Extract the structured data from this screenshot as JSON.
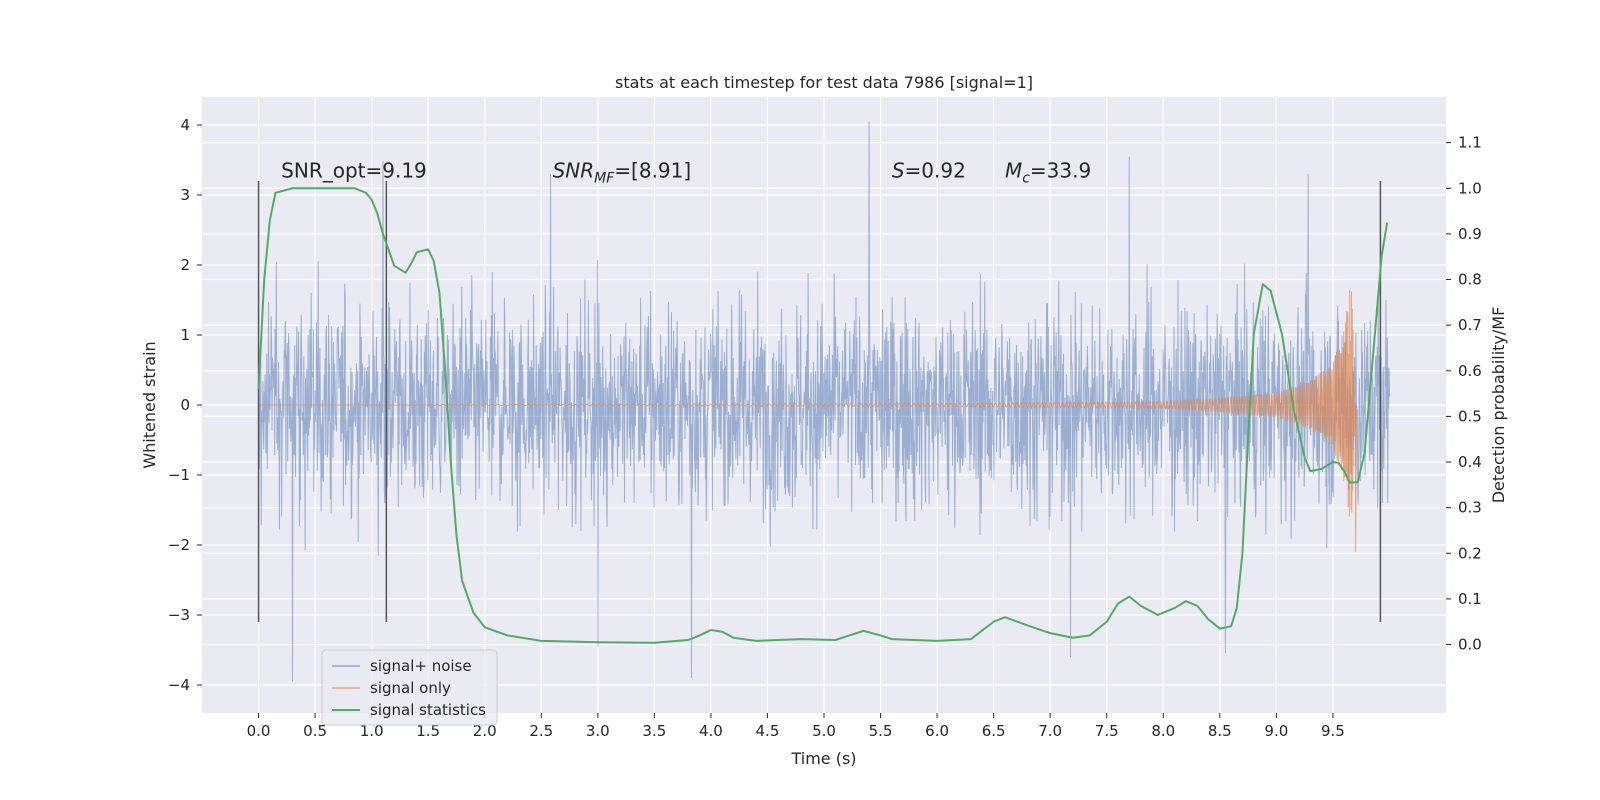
{
  "chart_data": {
    "type": "line",
    "title": "stats at each timestep for test data 7986 [signal=1]",
    "xlabel": "Time (s)",
    "ylabel": "Whitened strain",
    "y2label": "Detection probability/MF",
    "xlim": [
      -0.5,
      10.5
    ],
    "ylim": [
      -4.4,
      4.4
    ],
    "y2lim": [
      -0.15,
      1.2
    ],
    "x_ticks": [
      0.0,
      0.5,
      1.0,
      1.5,
      2.0,
      2.5,
      3.0,
      3.5,
      4.0,
      4.5,
      5.0,
      5.5,
      6.0,
      6.5,
      7.0,
      7.5,
      8.0,
      8.5,
      9.0,
      9.5
    ],
    "x_tick_labels": [
      "0.0",
      "0.5",
      "1.0",
      "1.5",
      "2.0",
      "2.5",
      "3.0",
      "3.5",
      "4.0",
      "4.5",
      "5.0",
      "5.5",
      "6.0",
      "6.5",
      "7.0",
      "7.5",
      "8.0",
      "8.5",
      "9.0",
      "9.5"
    ],
    "y_ticks": [
      4,
      3,
      2,
      1,
      0,
      -1,
      -2,
      -3,
      -4
    ],
    "y_tick_labels": [
      "4",
      "3",
      "2",
      "1",
      "0",
      "−1",
      "−2",
      "−3",
      "−4"
    ],
    "y2_ticks": [
      1.1,
      1.0,
      0.9,
      0.8,
      0.7,
      0.6,
      0.5,
      0.4,
      0.3,
      0.2,
      0.1,
      0.0
    ],
    "y2_tick_labels": [
      "1.1",
      "1.0",
      "0.9",
      "0.8",
      "0.7",
      "0.6",
      "0.5",
      "0.4",
      "0.3",
      "0.2",
      "0.1",
      "0.0"
    ],
    "grid": true,
    "legend_position": "lower-left",
    "legend": [
      "signal+ noise",
      "signal only",
      "signal statistics"
    ],
    "series": [
      {
        "name": "signal+ noise",
        "color": "#4c72b0",
        "axis": "left",
        "x_range": [
          0.0,
          10.0
        ],
        "envelope_typical": [
          -1.3,
          1.3
        ],
        "peaks": [
          {
            "x": 0.3,
            "y": -3.95
          },
          {
            "x": 1.1,
            "y": 3.48
          },
          {
            "x": 2.58,
            "y": 3.3
          },
          {
            "x": 3.0,
            "y": -3.45
          },
          {
            "x": 3.83,
            "y": -3.9
          },
          {
            "x": 5.4,
            "y": 4.05
          },
          {
            "x": 7.18,
            "y": -3.6
          },
          {
            "x": 7.7,
            "y": 3.55
          },
          {
            "x": 8.55,
            "y": -3.55
          },
          {
            "x": 9.28,
            "y": 3.3
          }
        ]
      },
      {
        "name": "signal only",
        "color": "#dd8452",
        "axis": "left",
        "envelope": [
          {
            "x": 0.0,
            "y": 0.0
          },
          {
            "x": 6.0,
            "y": 0.02
          },
          {
            "x": 8.0,
            "y": 0.05
          },
          {
            "x": 8.5,
            "y": 0.1
          },
          {
            "x": 9.0,
            "y": 0.18
          },
          {
            "x": 9.3,
            "y": 0.35
          },
          {
            "x": 9.5,
            "y": 0.6
          },
          {
            "x": 9.6,
            "y": 1.1
          },
          {
            "x": 9.66,
            "y": 1.9
          },
          {
            "x": 9.7,
            "y": 0.0
          }
        ]
      },
      {
        "name": "signal statistics",
        "color": "#55a868",
        "axis": "right",
        "points": [
          {
            "x": 0.0,
            "y": 0.56
          },
          {
            "x": 0.05,
            "y": 0.8
          },
          {
            "x": 0.1,
            "y": 0.93
          },
          {
            "x": 0.15,
            "y": 0.99
          },
          {
            "x": 0.3,
            "y": 1.0
          },
          {
            "x": 0.7,
            "y": 1.0
          },
          {
            "x": 0.85,
            "y": 1.0
          },
          {
            "x": 0.95,
            "y": 0.99
          },
          {
            "x": 1.0,
            "y": 0.975
          },
          {
            "x": 1.05,
            "y": 0.945
          },
          {
            "x": 1.1,
            "y": 0.9
          },
          {
            "x": 1.2,
            "y": 0.83
          },
          {
            "x": 1.3,
            "y": 0.815
          },
          {
            "x": 1.35,
            "y": 0.835
          },
          {
            "x": 1.4,
            "y": 0.86
          },
          {
            "x": 1.5,
            "y": 0.866
          },
          {
            "x": 1.55,
            "y": 0.84
          },
          {
            "x": 1.6,
            "y": 0.77
          },
          {
            "x": 1.65,
            "y": 0.6
          },
          {
            "x": 1.7,
            "y": 0.4
          },
          {
            "x": 1.75,
            "y": 0.24
          },
          {
            "x": 1.8,
            "y": 0.14
          },
          {
            "x": 1.9,
            "y": 0.07
          },
          {
            "x": 2.0,
            "y": 0.038
          },
          {
            "x": 2.2,
            "y": 0.02
          },
          {
            "x": 2.5,
            "y": 0.008
          },
          {
            "x": 3.0,
            "y": 0.005
          },
          {
            "x": 3.5,
            "y": 0.004
          },
          {
            "x": 3.8,
            "y": 0.01
          },
          {
            "x": 3.9,
            "y": 0.02
          },
          {
            "x": 4.0,
            "y": 0.032
          },
          {
            "x": 4.1,
            "y": 0.028
          },
          {
            "x": 4.2,
            "y": 0.015
          },
          {
            "x": 4.4,
            "y": 0.008
          },
          {
            "x": 4.8,
            "y": 0.012
          },
          {
            "x": 5.1,
            "y": 0.01
          },
          {
            "x": 5.2,
            "y": 0.018
          },
          {
            "x": 5.35,
            "y": 0.03
          },
          {
            "x": 5.5,
            "y": 0.02
          },
          {
            "x": 5.6,
            "y": 0.012
          },
          {
            "x": 6.0,
            "y": 0.008
          },
          {
            "x": 6.3,
            "y": 0.012
          },
          {
            "x": 6.5,
            "y": 0.05
          },
          {
            "x": 6.6,
            "y": 0.06
          },
          {
            "x": 6.8,
            "y": 0.042
          },
          {
            "x": 7.0,
            "y": 0.025
          },
          {
            "x": 7.2,
            "y": 0.015
          },
          {
            "x": 7.35,
            "y": 0.02
          },
          {
            "x": 7.5,
            "y": 0.05
          },
          {
            "x": 7.6,
            "y": 0.09
          },
          {
            "x": 7.7,
            "y": 0.105
          },
          {
            "x": 7.8,
            "y": 0.085
          },
          {
            "x": 7.95,
            "y": 0.065
          },
          {
            "x": 8.1,
            "y": 0.08
          },
          {
            "x": 8.2,
            "y": 0.095
          },
          {
            "x": 8.3,
            "y": 0.085
          },
          {
            "x": 8.4,
            "y": 0.055
          },
          {
            "x": 8.5,
            "y": 0.035
          },
          {
            "x": 8.6,
            "y": 0.04
          },
          {
            "x": 8.65,
            "y": 0.08
          },
          {
            "x": 8.7,
            "y": 0.2
          },
          {
            "x": 8.75,
            "y": 0.45
          },
          {
            "x": 8.8,
            "y": 0.68
          },
          {
            "x": 8.88,
            "y": 0.79
          },
          {
            "x": 8.95,
            "y": 0.775
          },
          {
            "x": 9.05,
            "y": 0.68
          },
          {
            "x": 9.15,
            "y": 0.52
          },
          {
            "x": 9.25,
            "y": 0.41
          },
          {
            "x": 9.3,
            "y": 0.38
          },
          {
            "x": 9.4,
            "y": 0.385
          },
          {
            "x": 9.5,
            "y": 0.4
          },
          {
            "x": 9.55,
            "y": 0.398
          },
          {
            "x": 9.6,
            "y": 0.38
          },
          {
            "x": 9.65,
            "y": 0.355
          },
          {
            "x": 9.72,
            "y": 0.356
          },
          {
            "x": 9.78,
            "y": 0.42
          },
          {
            "x": 9.85,
            "y": 0.62
          },
          {
            "x": 9.93,
            "y": 0.85
          },
          {
            "x": 9.98,
            "y": 0.925
          }
        ]
      }
    ],
    "vlines": [
      {
        "x": 0.0,
        "ymin": -3.1,
        "ymax": 3.2
      },
      {
        "x": 1.13,
        "ymin": -3.1,
        "ymax": 3.2
      },
      {
        "x": 9.92,
        "ymin": -3.1,
        "ymax": 3.2
      }
    ],
    "annotations": [
      {
        "x": 0.2,
        "y": 3.25,
        "text": "SNR_opt=9.19"
      },
      {
        "x": 2.6,
        "y": 3.25,
        "text_base": "SNR",
        "text_sub": "MF",
        "text_after": "=[8.91]"
      },
      {
        "x": 5.6,
        "y": 3.25,
        "text_italic": "S",
        "text_after": "=0.92"
      },
      {
        "x": 6.6,
        "y": 3.25,
        "text_base": "M",
        "text_sub": "c",
        "text_after": "=33.9"
      }
    ]
  }
}
